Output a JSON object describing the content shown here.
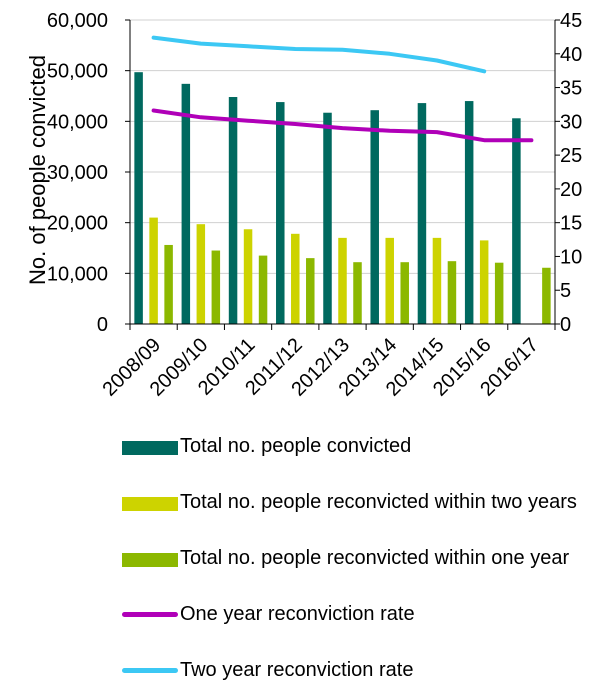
{
  "chart_data": {
    "type": "bar",
    "categories": [
      "2008/09",
      "2009/10",
      "2010/11",
      "2011/12",
      "2012/13",
      "2013/14",
      "2014/15",
      "2015/16",
      "2016/17"
    ],
    "ylabel": "No. of people convicted",
    "ylim": [
      0,
      60000
    ],
    "y_ticks": [
      "0",
      "10,000",
      "20,000",
      "30,000",
      "40,000",
      "50,000",
      "60,000"
    ],
    "y2lim": [
      0,
      45
    ],
    "y2_ticks": [
      "0",
      "5",
      "10",
      "15",
      "20",
      "25",
      "30",
      "35",
      "40",
      "45"
    ],
    "grid": true,
    "legend_position": "bottom",
    "series": [
      {
        "name": "Total no. people convicted",
        "type": "bar",
        "axis": "left",
        "color": "#00695f",
        "values": [
          49700,
          47400,
          44800,
          43800,
          41700,
          42200,
          43600,
          44000,
          40600
        ]
      },
      {
        "name": "Total no. people reconvicted within two years",
        "type": "bar",
        "axis": "left",
        "color": "#cdd300",
        "values": [
          21000,
          19700,
          18700,
          17800,
          17000,
          17000,
          17000,
          16500,
          null
        ]
      },
      {
        "name": "Total no. people reconvicted within one year",
        "type": "bar",
        "axis": "left",
        "color": "#8cb800",
        "values": [
          15600,
          14500,
          13500,
          13000,
          12200,
          12200,
          12400,
          12100,
          11100
        ]
      },
      {
        "name": "One year reconviction rate",
        "type": "line",
        "axis": "right",
        "color": "#b000b8",
        "values": [
          31.6,
          30.6,
          30.1,
          29.6,
          29.0,
          28.6,
          28.4,
          27.2,
          27.2
        ]
      },
      {
        "name": "Two year reconviction rate",
        "type": "line",
        "axis": "right",
        "color": "#3cc8f4",
        "values": [
          42.4,
          41.5,
          41.1,
          40.7,
          40.6,
          40.0,
          39.0,
          37.4,
          null
        ]
      }
    ]
  }
}
